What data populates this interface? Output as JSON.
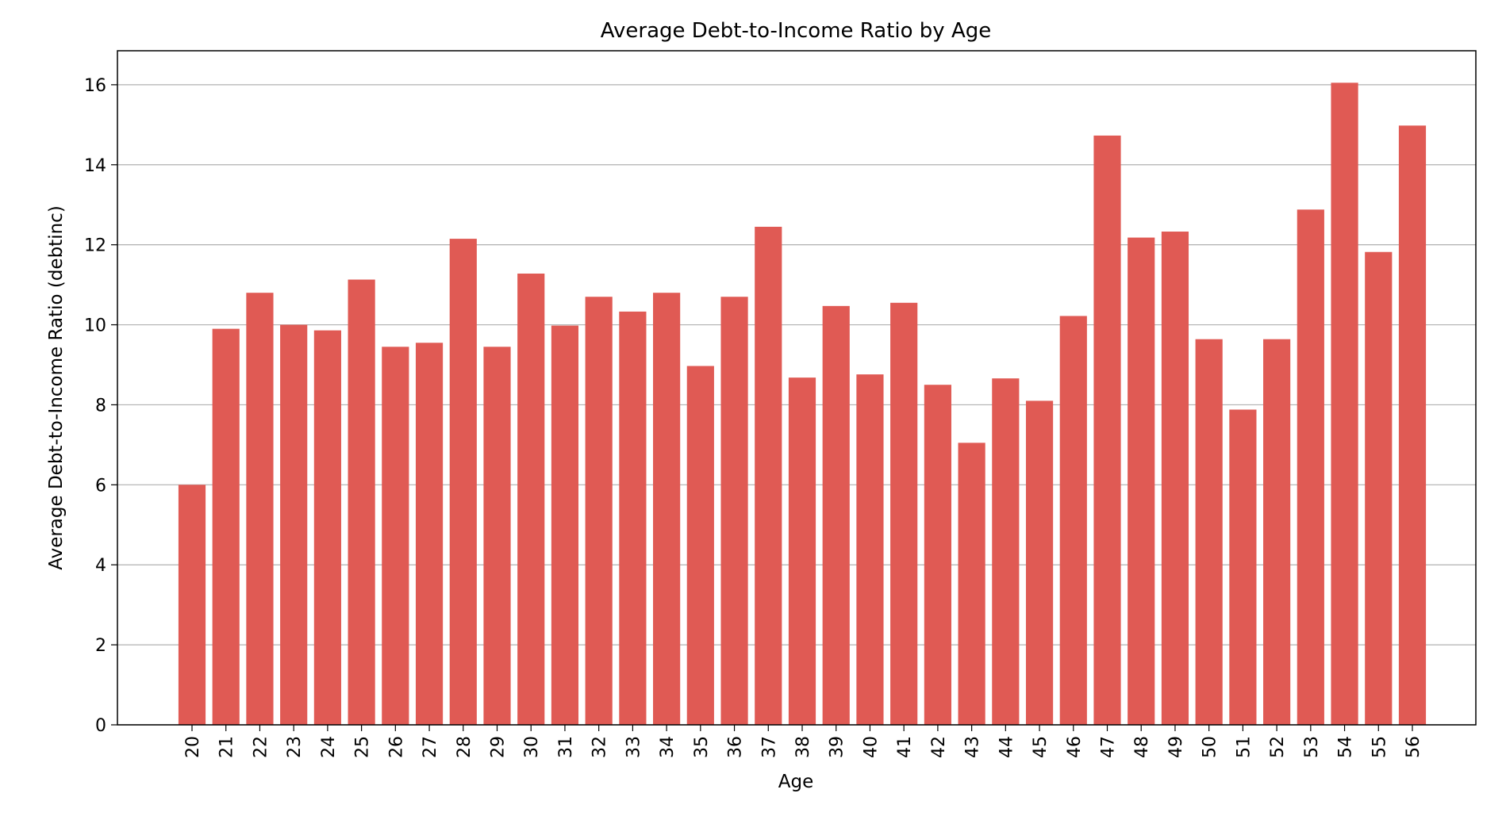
{
  "chart_data": {
    "type": "bar",
    "title": "Average Debt-to-Income Ratio by Age",
    "xlabel": "Age",
    "ylabel": "Average Debt-to-Income Ratio (debtinc)",
    "categories": [
      "20",
      "21",
      "22",
      "23",
      "24",
      "25",
      "26",
      "27",
      "28",
      "29",
      "30",
      "31",
      "32",
      "33",
      "34",
      "35",
      "36",
      "37",
      "38",
      "39",
      "40",
      "41",
      "42",
      "43",
      "44",
      "45",
      "46",
      "47",
      "48",
      "49",
      "50",
      "51",
      "52",
      "53",
      "54",
      "55",
      "56"
    ],
    "values": [
      6.0,
      9.9,
      10.8,
      10.0,
      9.86,
      11.13,
      9.45,
      9.55,
      12.15,
      9.45,
      11.28,
      9.98,
      10.7,
      10.33,
      10.8,
      8.97,
      10.7,
      12.45,
      8.68,
      10.47,
      8.76,
      10.55,
      8.5,
      7.05,
      8.66,
      8.1,
      10.22,
      14.73,
      12.18,
      12.33,
      9.64,
      7.88,
      9.64,
      12.88,
      16.05,
      11.82,
      14.98
    ],
    "yticks": [
      0,
      2,
      4,
      6,
      8,
      10,
      12,
      14,
      16
    ],
    "ylim": [
      0,
      16.85
    ],
    "grid": "horizontal",
    "bar_color": "#e05a54"
  }
}
